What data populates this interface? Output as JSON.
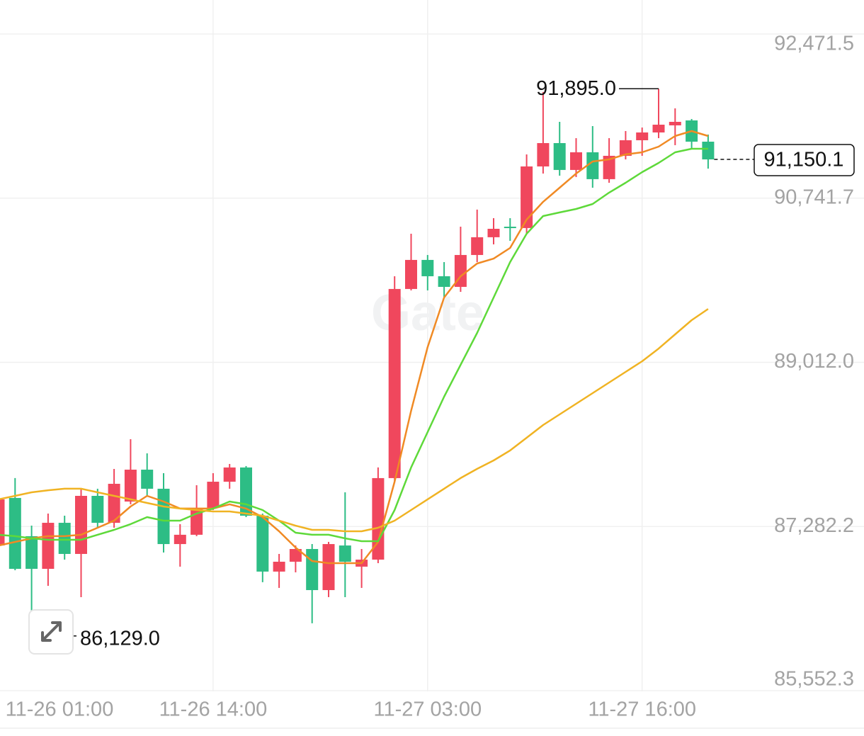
{
  "chart_data": {
    "type": "candlestick",
    "watermark": "Gate",
    "categories": [
      "11-26 01:00",
      null,
      null,
      null,
      null,
      null,
      null,
      null,
      null,
      null,
      null,
      null,
      null,
      "11-26 14:00",
      null,
      null,
      null,
      null,
      null,
      null,
      null,
      null,
      null,
      null,
      null,
      null,
      "11-27 03:00",
      null,
      null,
      null,
      null,
      null,
      null,
      null,
      null,
      null,
      null,
      null,
      null,
      "11-27 16:00",
      null,
      null,
      null,
      null
    ],
    "open": [
      87082,
      87583,
      87180,
      86836,
      87321,
      86993,
      87605,
      87321,
      87545,
      87881,
      87680,
      87097,
      87195,
      87478,
      87754,
      87904,
      87396,
      86807,
      86911,
      87045,
      86612,
      87082,
      86859,
      86933,
      87792,
      89785,
      90091,
      89919,
      89807,
      90143,
      90330,
      90441,
      90427,
      91076,
      91322,
      91039,
      91225,
      90942,
      91188,
      91352,
      91434,
      91509,
      91561,
      91337
    ],
    "high": [
      87605,
      87792,
      87291,
      87418,
      87396,
      87680,
      87680,
      87889,
      88202,
      88053,
      87844,
      87307,
      87717,
      87844,
      87941,
      87919,
      87418,
      86993,
      87082,
      87097,
      87120,
      87642,
      87045,
      87904,
      89919,
      90367,
      90143,
      90068,
      90441,
      90621,
      90531,
      90531,
      91203,
      91860,
      91546,
      91374,
      91501,
      91374,
      91449,
      91486,
      91895.0,
      91688,
      91576,
      91412
    ],
    "low": [
      87045,
      86821,
      86129.0,
      86657,
      86933,
      86538,
      87269,
      87269,
      87516,
      87605,
      87008,
      86859,
      87180,
      87456,
      87680,
      87381,
      86695,
      86635,
      86799,
      86262,
      86538,
      86538,
      86635,
      86896,
      87754,
      89770,
      89770,
      89695,
      89755,
      90068,
      90255,
      90292,
      90367,
      91001,
      90979,
      90964,
      90852,
      90904,
      91150,
      91188,
      91374,
      91300,
      91262,
      91053
    ],
    "close": [
      87568,
      86836,
      86836,
      87321,
      86993,
      87605,
      87321,
      87732,
      87881,
      87680,
      87097,
      87195,
      87478,
      87754,
      87904,
      87396,
      86807,
      86911,
      87045,
      86612,
      87097,
      86911,
      86933,
      87792,
      89785,
      90091,
      89919,
      89807,
      90143,
      90330,
      90419,
      90427,
      91076,
      91322,
      91039,
      91225,
      90942,
      91188,
      91352,
      91434,
      91516,
      91546,
      91337,
      91150.1
    ],
    "up_color": "#f0475d",
    "down_color": "#2dbd85",
    "lines": [
      {
        "color": "#f08a24",
        "values": [
          87082,
          87120,
          87157,
          87180,
          87180,
          87195,
          87269,
          87344,
          87493,
          87605,
          87545,
          87471,
          87471,
          87471,
          87516,
          87471,
          87381,
          87232,
          87060,
          86918,
          86896,
          86896,
          86896,
          87120,
          87754,
          88501,
          89172,
          89695,
          89919,
          90053,
          90105,
          90217,
          90516,
          90703,
          90852,
          91001,
          91128,
          91150,
          91203,
          91225,
          91285,
          91397,
          91449,
          91397
        ]
      },
      {
        "color": "#5ed93a",
        "values": [
          87195,
          87180,
          87157,
          87142,
          87142,
          87142,
          87195,
          87247,
          87307,
          87381,
          87344,
          87344,
          87418,
          87471,
          87545,
          87516,
          87456,
          87344,
          87217,
          87195,
          87195,
          87157,
          87127,
          87127,
          87456,
          87904,
          88277,
          88650,
          88986,
          89322,
          89695,
          90068,
          90367,
          90553,
          90591,
          90628,
          90680,
          90800,
          90904,
          91016,
          91113,
          91225,
          91262,
          91262
        ]
      },
      {
        "color": "#f0b323",
        "values": [
          87568,
          87605,
          87642,
          87664,
          87680,
          87680,
          87642,
          87605,
          87568,
          87530,
          87493,
          87471,
          87456,
          87441,
          87441,
          87418,
          87396,
          87344,
          87291,
          87247,
          87247,
          87232,
          87232,
          87269,
          87344,
          87456,
          87568,
          87680,
          87792,
          87889,
          87978,
          88083,
          88217,
          88351,
          88463,
          88575,
          88687,
          88799,
          88911,
          89023,
          89157,
          89307,
          89456,
          89575
        ]
      }
    ],
    "ylim": [
      85552.3,
      92471.5
    ],
    "yticks": [
      {
        "value": 85552.3,
        "label": "85,552.3"
      },
      {
        "value": 87282.2,
        "label": "87,282.2"
      },
      {
        "value": 89012.0,
        "label": "89,012.0"
      },
      {
        "value": 90741.7,
        "label": "90,741.7"
      },
      {
        "value": 92471.5,
        "label": "92,471.5"
      }
    ],
    "grid": true,
    "max_label": {
      "value": 91895.0,
      "label": "91,895.0"
    },
    "min_label": {
      "value": 86129.0,
      "label": "86,129.0"
    },
    "last_price": {
      "value": 91150.1,
      "label": "91,150.1"
    }
  }
}
